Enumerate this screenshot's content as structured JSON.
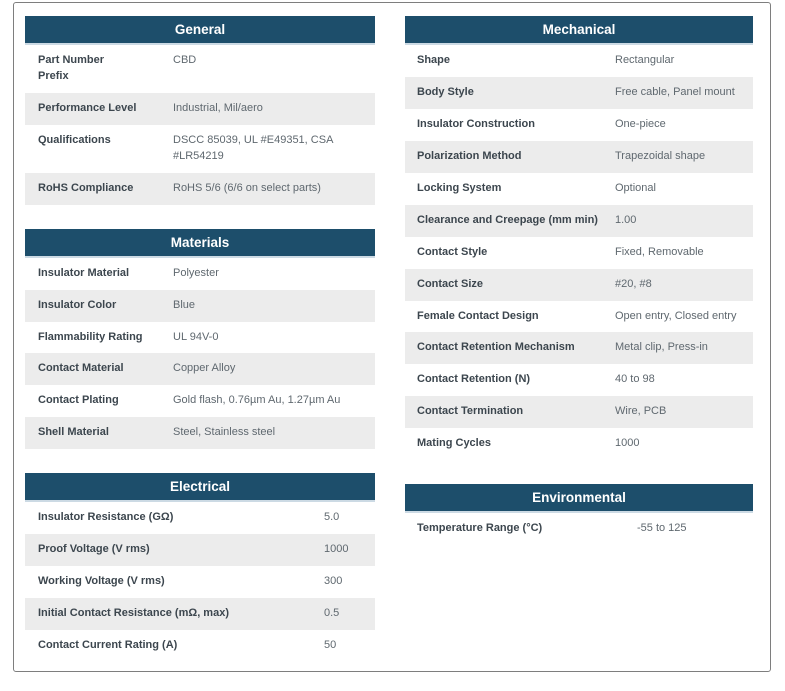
{
  "colors": {
    "header_bg": "#1d4e6b",
    "header_text": "#ffffff",
    "row_alt_bg": "#ececec",
    "label_text": "#3c464e",
    "value_text": "#5f686f",
    "border": "#7e7e7e"
  },
  "columns": [
    [
      {
        "id": "general",
        "title": "General",
        "rows": [
          {
            "label": "Part Number\nPrefix",
            "value": "CBD"
          },
          {
            "label": "Performance Level",
            "value": "Industrial, Mil/aero"
          },
          {
            "label": "Qualifications",
            "value": "DSCC 85039, UL #E49351, CSA #LR54219"
          },
          {
            "label": "RoHS Compliance",
            "value": "RoHS 5/6 (6/6 on select parts)"
          }
        ]
      },
      {
        "id": "materials",
        "title": "Materials",
        "rows": [
          {
            "label": "Insulator Material",
            "value": "Polyester"
          },
          {
            "label": "Insulator Color",
            "value": "Blue"
          },
          {
            "label": "Flammability Rating",
            "value": "UL 94V-0"
          },
          {
            "label": "Contact Material",
            "value": "Copper Alloy"
          },
          {
            "label": "Contact Plating",
            "value": "Gold flash, 0.76µm Au, 1.27µm Au"
          },
          {
            "label": "Shell Material",
            "value": "Steel, Stainless steel"
          }
        ]
      },
      {
        "id": "electrical",
        "title": "Electrical",
        "rows": [
          {
            "label": "Insulator Resistance (GΩ)",
            "value": "5.0"
          },
          {
            "label": "Proof Voltage (V rms)",
            "value": "1000"
          },
          {
            "label": "Working Voltage (V rms)",
            "value": "300"
          },
          {
            "label": "Initial Contact Resistance (mΩ, max)",
            "value": "0.5"
          },
          {
            "label": "Contact Current Rating (A)",
            "value": "50"
          }
        ]
      }
    ],
    [
      {
        "id": "mechanical",
        "title": "Mechanical",
        "rows": [
          {
            "label": "Shape",
            "value": "Rectangular"
          },
          {
            "label": "Body Style",
            "value": "Free cable, Panel mount"
          },
          {
            "label": "Insulator Construction",
            "value": "One-piece"
          },
          {
            "label": "Polarization Method",
            "value": "Trapezoidal shape"
          },
          {
            "label": "Locking System",
            "value": "Optional"
          },
          {
            "label": "Clearance and Creepage (mm min)",
            "value": "1.00"
          },
          {
            "label": "Contact Style",
            "value": "Fixed, Removable"
          },
          {
            "label": "Contact Size",
            "value": "#20, #8"
          },
          {
            "label": "Female Contact Design",
            "value": "Open entry, Closed entry"
          },
          {
            "label": "Contact Retention Mechanism",
            "value": "Metal clip, Press-in"
          },
          {
            "label": "Contact Retention (N)",
            "value": "40 to 98"
          },
          {
            "label": "Contact Termination",
            "value": "Wire, PCB"
          },
          {
            "label": "Mating Cycles",
            "value": "1000"
          }
        ]
      },
      {
        "id": "environmental",
        "title": "Environmental",
        "rows": [
          {
            "label": "Temperature Range (°C)",
            "value": "-55 to 125"
          }
        ]
      }
    ]
  ]
}
